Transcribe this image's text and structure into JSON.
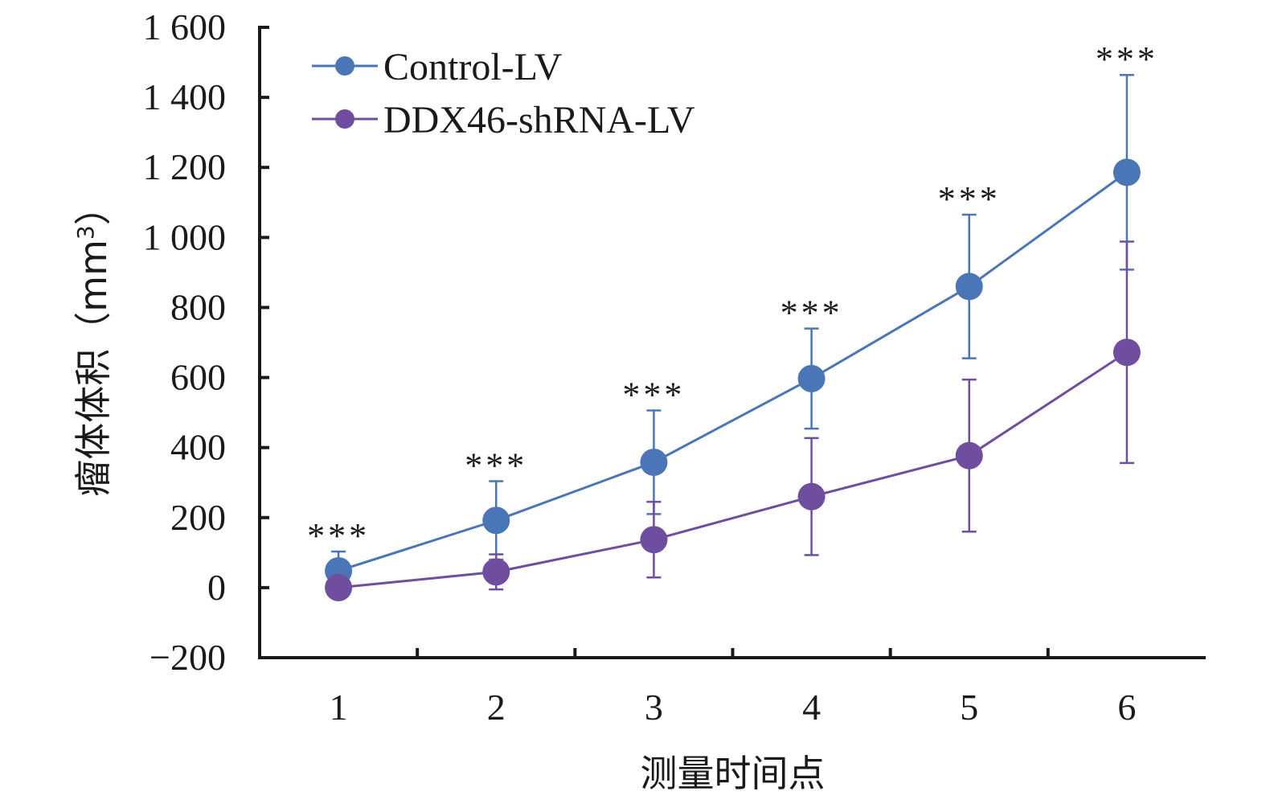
{
  "chart_data": {
    "type": "line",
    "xlabel": "测量时间点",
    "ylabel": "瘤体体积（mm³）",
    "ylabel_main": "瘤体体积（mm",
    "ylabel_sup": "3",
    "ylabel_close": "）",
    "x": [
      1,
      2,
      3,
      4,
      5,
      6
    ],
    "x_tick_labels": [
      "1",
      "2",
      "3",
      "4",
      "5",
      "6"
    ],
    "xlim": [
      0.5,
      6.5
    ],
    "ylim": [
      -200,
      1600
    ],
    "y_ticks": [
      -200,
      0,
      200,
      400,
      600,
      800,
      1000,
      1200,
      1400,
      1600
    ],
    "y_tick_labels": [
      "−200",
      "0",
      "200",
      "400",
      "600",
      "800",
      "1 000",
      "1 200",
      "1 400",
      "1 600"
    ],
    "grid": false,
    "legend_position": "top-left",
    "series": [
      {
        "name": "Control-LV",
        "color": "#4a76b8",
        "values": [
          48,
          192,
          358,
          597,
          860,
          1186
        ],
        "error": [
          55,
          112,
          148,
          143,
          205,
          278
        ]
      },
      {
        "name": "DDX46-shRNA-LV",
        "color": "#6f4ea0",
        "values": [
          0,
          45,
          137,
          260,
          377,
          672
        ],
        "error": [
          0,
          50,
          108,
          167,
          217,
          316
        ]
      }
    ],
    "significance": [
      "***",
      "***",
      "***",
      "***",
      "***",
      "***"
    ]
  }
}
